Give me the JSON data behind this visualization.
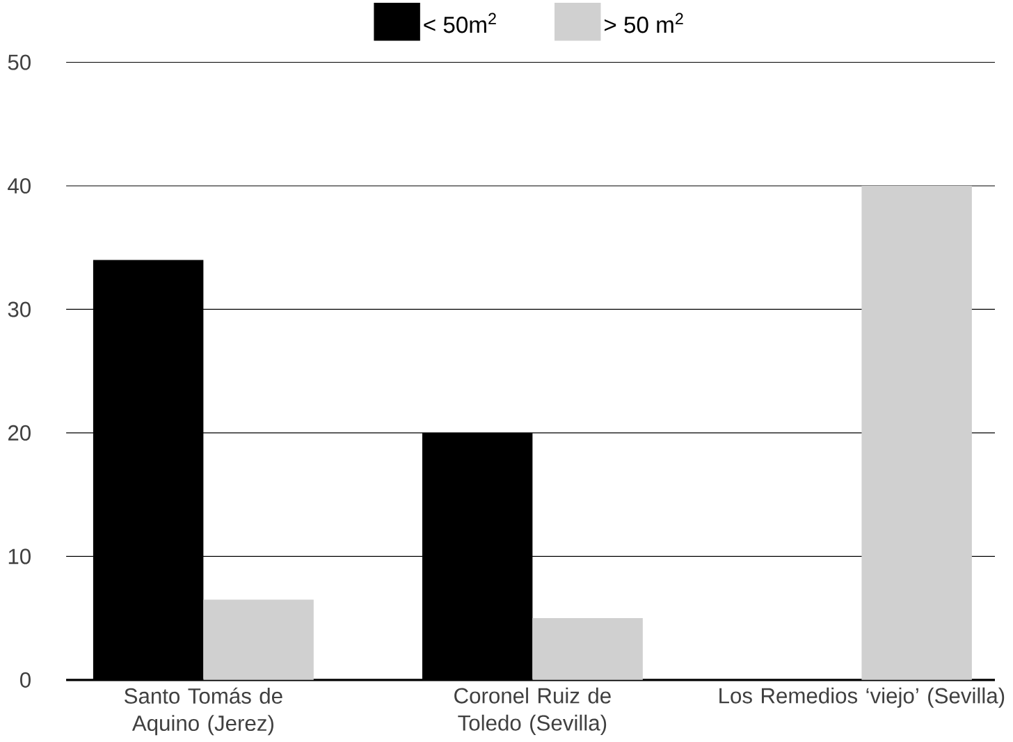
{
  "chart_data": {
    "type": "bar",
    "categories": [
      "Santo Tomás de Aquino (Jerez)",
      "Coronel Ruiz de Toledo (Sevilla)",
      "Los Remedios ‘viejo’ (Sevilla)"
    ],
    "series": [
      {
        "name": "< 50m$^{2}$",
        "color": "#000000",
        "values": [
          34,
          20,
          null
        ]
      },
      {
        "name": "> 50 m$^{2}$",
        "color": "#d0d0d0",
        "values": [
          6.5,
          5,
          40
        ]
      }
    ],
    "ylim": [
      0,
      50
    ],
    "yticks": [
      0,
      10,
      20,
      30,
      40,
      50
    ],
    "grid": "y",
    "legend": "top"
  }
}
